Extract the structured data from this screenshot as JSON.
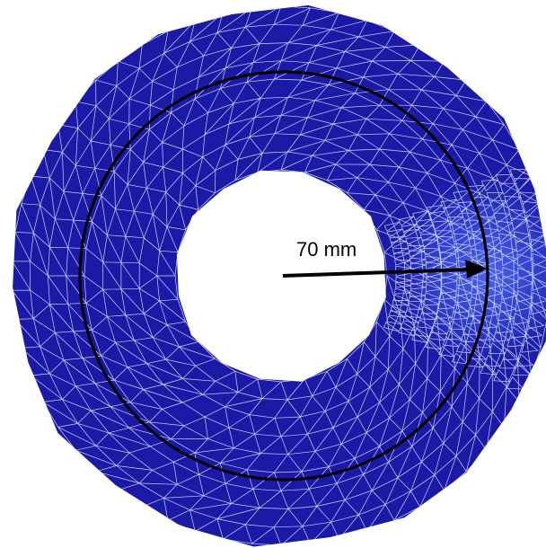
{
  "figure": {
    "radius_label": "70 mm",
    "colors": {
      "mesh_fill": "#1a1aa6",
      "mesh_fill_refined": "#3a4ee6",
      "mesh_lines": "#cfd3ff",
      "measurement_circle": "#000000",
      "arrow": "#000000",
      "background": "#ffffff"
    }
  }
}
